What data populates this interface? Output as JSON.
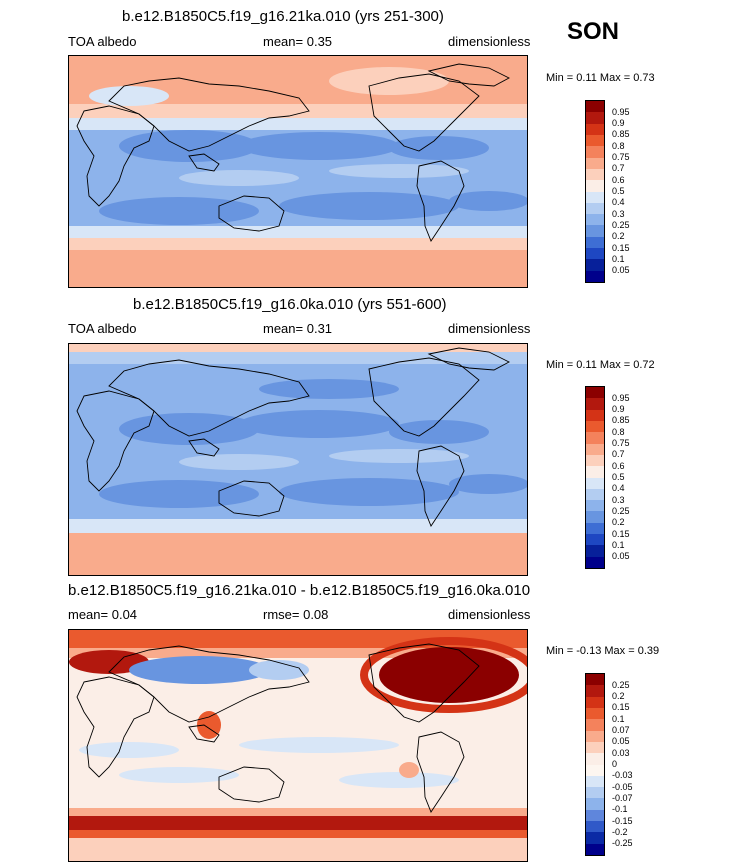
{
  "season": "SON",
  "panels": [
    {
      "title": "b.e12.B1850C5.f19_g16.21ka.010 (yrs 251-300)",
      "left_label": "TOA albedo",
      "center_label": "mean=  0.35",
      "right_label": "dimensionless",
      "minmax": "Min =   0.11 Max =   0.73",
      "colorbar_labels": [
        "0.95",
        "0.9",
        "0.85",
        "0.8",
        "0.75",
        "0.7",
        "0.6",
        "0.5",
        "0.4",
        "0.3",
        "0.25",
        "0.2",
        "0.15",
        "0.1",
        "0.05"
      ],
      "colorbar_colors": [
        "#8b0000",
        "#b2180e",
        "#d43316",
        "#ea5a2e",
        "#f4825c",
        "#f9ab8c",
        "#fcd0bc",
        "#fbeee7",
        "#d8e6f7",
        "#b3cdf1",
        "#8db3eb",
        "#6895e0",
        "#3e6ed4",
        "#1e47c2",
        "#07209a",
        "#00008b"
      ]
    },
    {
      "title": "b.e12.B1850C5.f19_g16.0ka.010 (yrs 551-600)",
      "left_label": "TOA albedo",
      "center_label": "mean=  0.31",
      "right_label": "dimensionless",
      "minmax": "Min =   0.11 Max =   0.72",
      "colorbar_labels": [
        "0.95",
        "0.9",
        "0.85",
        "0.8",
        "0.75",
        "0.7",
        "0.6",
        "0.5",
        "0.4",
        "0.3",
        "0.25",
        "0.2",
        "0.15",
        "0.1",
        "0.05"
      ],
      "colorbar_colors": [
        "#8b0000",
        "#b2180e",
        "#d43316",
        "#ea5a2e",
        "#f4825c",
        "#f9ab8c",
        "#fcd0bc",
        "#fbeee7",
        "#d8e6f7",
        "#b3cdf1",
        "#8db3eb",
        "#6895e0",
        "#3e6ed4",
        "#1e47c2",
        "#07209a",
        "#00008b"
      ]
    },
    {
      "title": "b.e12.B1850C5.f19_g16.21ka.010 - b.e12.B1850C5.f19_g16.0ka.010",
      "left_label": "mean=   0.04",
      "center_label": "rmse=   0.08",
      "right_label": "dimensionless",
      "minmax": "Min =  -0.13 Max =   0.39",
      "colorbar_labels": [
        "0.25",
        "0.2",
        "0.15",
        "0.1",
        "0.07",
        "0.05",
        "0.03",
        "0",
        "-0.03",
        "-0.05",
        "-0.07",
        "-0.1",
        "-0.15",
        "-0.2",
        "-0.25"
      ],
      "colorbar_colors": [
        "#8b0000",
        "#b2180e",
        "#d43316",
        "#ea5a2e",
        "#f4825c",
        "#f9ab8c",
        "#fcd0bc",
        "#fbeee7",
        "#fdf6f0",
        "#d8e6f7",
        "#b3cdf1",
        "#8db3eb",
        "#5f86dc",
        "#3059c8",
        "#0b2aa5",
        "#00008b"
      ]
    }
  ]
}
